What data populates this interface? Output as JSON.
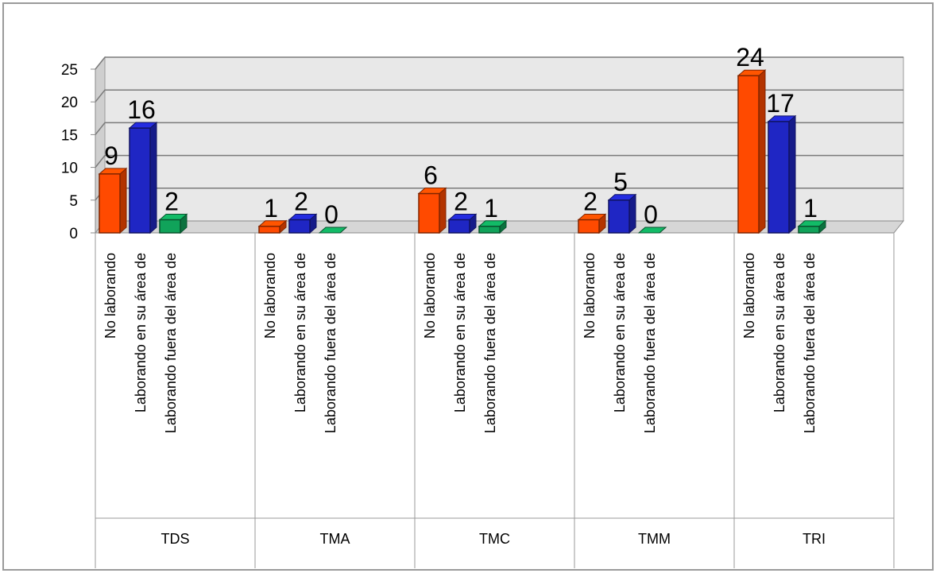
{
  "chart_data": {
    "type": "bar",
    "title": "",
    "xlabel": "",
    "ylabel": "",
    "ylim": [
      0,
      25
    ],
    "yticks": [
      "0",
      "5",
      "10",
      "15",
      "20",
      "25"
    ],
    "grid": true,
    "legend": "none",
    "groups": [
      {
        "name": "TDS",
        "bars": [
          {
            "label": "No laborando",
            "value": 9
          },
          {
            "label": "Laborando en su área de",
            "value": 16
          },
          {
            "label": "Laborando fuera del área de",
            "value": 2
          }
        ]
      },
      {
        "name": "TMA",
        "bars": [
          {
            "label": "No laborando",
            "value": 1
          },
          {
            "label": "Laborando en su área de",
            "value": 2
          },
          {
            "label": "Laborando fuera del área de",
            "value": 0
          }
        ]
      },
      {
        "name": "TMC",
        "bars": [
          {
            "label": "No laborando",
            "value": 6
          },
          {
            "label": "Laborando en su área de",
            "value": 2
          },
          {
            "label": "Laborando fuera del área de",
            "value": 1
          }
        ]
      },
      {
        "name": "TMM",
        "bars": [
          {
            "label": "No laborando",
            "value": 2
          },
          {
            "label": "Laborando en su área de",
            "value": 5
          },
          {
            "label": "Laborando fuera del área de",
            "value": 0
          }
        ]
      },
      {
        "name": "TRI",
        "bars": [
          {
            "label": "No laborando",
            "value": 24
          },
          {
            "label": "Laborando en su área de",
            "value": 17
          },
          {
            "label": "Laborando fuera del área de",
            "value": 1
          }
        ]
      }
    ],
    "colors": [
      "#ff4a00",
      "#1f26c4",
      "#10a35a"
    ],
    "wall_color": "#e8e8e8",
    "gridline_color": "#7a7a7a"
  }
}
